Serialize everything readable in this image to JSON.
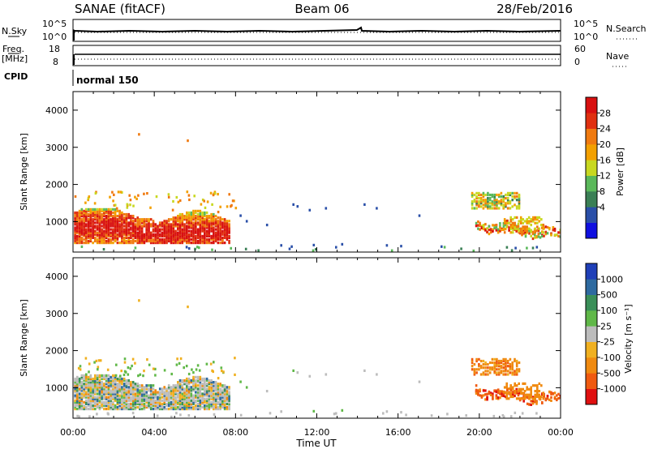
{
  "header": {
    "station": "SANAE (fitACF)",
    "beam": "Beam 06",
    "date": "28/Feb/2016"
  },
  "colors": {
    "power": [
      "#1010e0",
      "#2a4fa8",
      "#3a7f55",
      "#5ab85a",
      "#c8d820",
      "#f3a000",
      "#f07a10",
      "#e03010",
      "#d81010"
    ],
    "velocity": [
      "#e01010",
      "#f05a10",
      "#f08a10",
      "#f0b020",
      "#bcbcbc",
      "#60b848",
      "#3a8f58",
      "#2e6aa0",
      "#1f3fb8"
    ]
  },
  "sky": {
    "left_label": "N.Sky",
    "left_ticks": [
      "10^5",
      "10^0"
    ],
    "right_label": "N.Search",
    "right_ticks": [
      "10^5",
      "10^0"
    ]
  },
  "freq": {
    "left_label": "Freq.",
    "left_unit": "[MHz]",
    "left_ticks": [
      "18",
      "8"
    ],
    "right_label": "Nave",
    "right_ticks": [
      "60",
      "0"
    ]
  },
  "cpid": {
    "label": "CPID",
    "program": "normal 150"
  },
  "chart_data": [
    {
      "type": "heatmap",
      "panel": "power",
      "xlabel": "",
      "ylabel": "Slant Range [km]",
      "xlim": [
        "00:00",
        "24:00"
      ],
      "ylim": [
        180,
        4500
      ],
      "yticks": [
        "4000",
        "3000",
        "2000",
        "1000"
      ],
      "colorbar_label": "Power [dB]",
      "colorbar_ticks": [
        "28",
        "24",
        "20",
        "16",
        "12",
        "8",
        "4"
      ],
      "colorbar_levels": [
        0,
        4,
        8,
        12,
        16,
        20,
        24,
        28,
        32,
        36
      ],
      "regions": [
        {
          "t": [
            0.0,
            7.7
          ],
          "r": [
            450,
            1350
          ],
          "level": "20-28"
        },
        {
          "t": [
            2.0,
            7.7
          ],
          "r": [
            550,
            800
          ],
          "level": "24-28"
        },
        {
          "t": [
            20.0,
            22.0
          ],
          "r": [
            1300,
            1800
          ],
          "level": "8-16"
        },
        {
          "t": [
            19.5,
            24.0
          ],
          "r": [
            450,
            1100
          ],
          "level": "12-28"
        },
        {
          "t": [
            10.0,
            15.0
          ],
          "r": [
            1100,
            1450
          ],
          "level": "8"
        }
      ]
    },
    {
      "type": "heatmap",
      "panel": "velocity",
      "xlabel": "Time UT",
      "ylabel": "Slant Range [km]",
      "xticks": [
        "00:00",
        "04:00",
        "08:00",
        "12:00",
        "16:00",
        "20:00",
        "00:00"
      ],
      "xlim": [
        "00:00",
        "24:00"
      ],
      "ylim": [
        180,
        4500
      ],
      "yticks": [
        "4000",
        "3000",
        "2000",
        "1000"
      ],
      "colorbar_label": "Velocity [m s⁻¹]",
      "colorbar_ticks": [
        "1000",
        "500",
        "100",
        "25",
        "-25",
        "-100",
        "-500",
        "-1000"
      ],
      "colorbar_levels": [
        -1500,
        -1000,
        -500,
        -100,
        -25,
        25,
        100,
        500,
        1000,
        1500
      ],
      "regions": [
        {
          "t": [
            0.0,
            7.7
          ],
          "r": [
            450,
            1350
          ],
          "level": "-25..25 with 25..500"
        },
        {
          "t": [
            19.5,
            24.0
          ],
          "r": [
            450,
            1700
          ],
          "level": "-1000..-100"
        }
      ]
    }
  ]
}
